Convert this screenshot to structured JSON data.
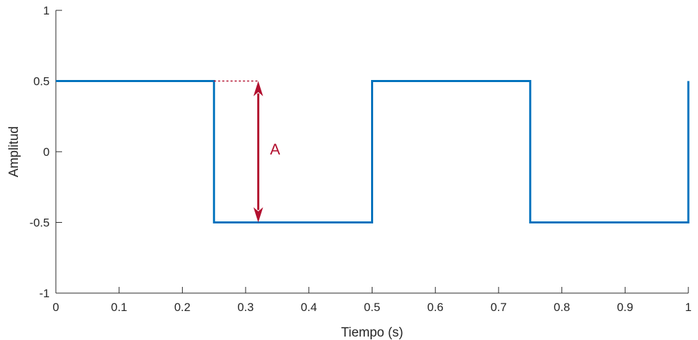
{
  "chart_data": {
    "type": "line",
    "title": "",
    "xlabel": "Tiempo (s)",
    "ylabel": "Amplitud",
    "xlim": [
      0,
      1
    ],
    "ylim": [
      -1,
      1
    ],
    "xticks": [
      "0",
      "0.1",
      "0.2",
      "0.3",
      "0.4",
      "0.5",
      "0.6",
      "0.7",
      "0.8",
      "0.9",
      "1"
    ],
    "yticks": [
      "-1",
      "-0.5",
      "0",
      "0.5",
      "1"
    ],
    "grid": false,
    "series": [
      {
        "color": "#0072BD",
        "style": "step",
        "x": [
          0,
          0.25,
          0.25,
          0.5,
          0.5,
          0.75,
          0.75,
          1,
          1
        ],
        "y": [
          0.5,
          0.5,
          -0.5,
          -0.5,
          0.5,
          0.5,
          -0.5,
          -0.5,
          0.5
        ]
      }
    ],
    "annotation": {
      "label": "A",
      "color": "#B2102F",
      "x": 0.32,
      "from": -0.5,
      "to": 0.5,
      "dotted_from_x": 0.25
    }
  }
}
